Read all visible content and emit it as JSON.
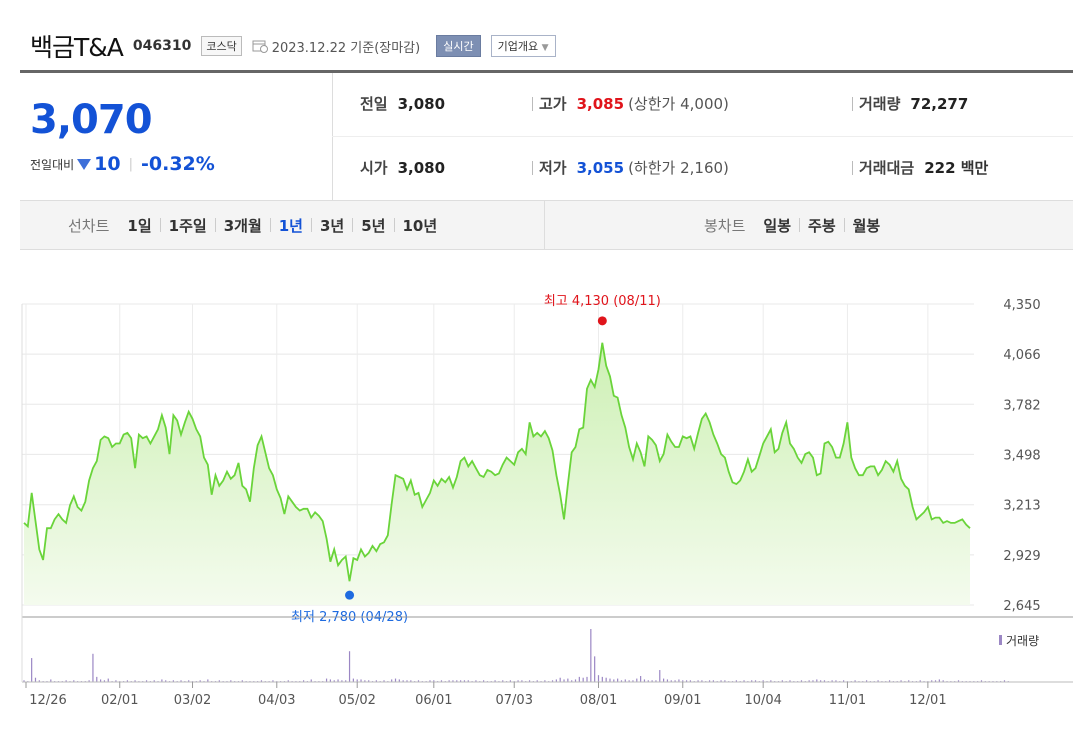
{
  "header": {
    "company_name": "백금T&A",
    "stock_code": "046310",
    "market": "코스닥",
    "date_text": "2023.12.22 기준(장마감)",
    "live_button": "실시간",
    "info_button": "기업개요"
  },
  "quote": {
    "price": "3,070",
    "change_label": "전일대비",
    "change_value": "10",
    "change_pct": "-0.32%",
    "prev_close_label": "전일",
    "prev_close": "3,080",
    "high_label": "고가",
    "high": "3,085",
    "upper_limit": "(상한가 4,000)",
    "volume_label": "거래량",
    "volume": "72,277",
    "open_label": "시가",
    "open": "3,080",
    "low_label": "저가",
    "low": "3,055",
    "lower_limit": "(하한가 2,160)",
    "amount_label": "거래대금",
    "amount": "222",
    "amount_unit": "백만"
  },
  "tabs": {
    "line_label": "선차트",
    "line_periods": [
      "1일",
      "1주일",
      "3개월",
      "1년",
      "3년",
      "5년",
      "10년"
    ],
    "active_period": "1년",
    "candle_label": "봉차트",
    "candle_periods": [
      "일봉",
      "주봉",
      "월봉"
    ]
  },
  "chart_data": {
    "type": "area",
    "y_ticks": [
      "4,350",
      "4,066",
      "3,782",
      "3,498",
      "3,213",
      "2,929",
      "2,645"
    ],
    "ylim": [
      2645,
      4350
    ],
    "x_ticks": [
      "12/26",
      "02/01",
      "03/02",
      "04/03",
      "05/02",
      "06/01",
      "07/03",
      "08/01",
      "09/01",
      "10/04",
      "11/01",
      "12/01"
    ],
    "high_annotation": "최고 4,130 (08/11)",
    "low_annotation": "최저 2,780 (04/28)",
    "volume_legend": "거래량",
    "line_color": "#6ad43a",
    "fill_color": "#cdf0b4",
    "volume_color": "#9b87c4",
    "series": [
      {
        "values": [
          3110,
          3090,
          3280,
          3120,
          2960,
          2900,
          3080,
          3080,
          3130,
          3160,
          3130,
          3110,
          3210,
          3260,
          3200,
          3180,
          3230,
          3350,
          3420,
          3460,
          3580,
          3600,
          3590,
          3540,
          3560,
          3560,
          3610,
          3620,
          3590,
          3420,
          3610,
          3590,
          3600,
          3560,
          3600,
          3640,
          3720,
          3650,
          3500,
          3720,
          3690,
          3610,
          3680,
          3740,
          3700,
          3640,
          3600,
          3480,
          3440,
          3270,
          3380,
          3320,
          3350,
          3400,
          3360,
          3380,
          3450,
          3320,
          3300,
          3230,
          3420,
          3550,
          3600,
          3510,
          3420,
          3380,
          3300,
          3250,
          3160,
          3260,
          3230,
          3200,
          3180,
          3190,
          3190,
          3140,
          3170,
          3150,
          3120,
          3020,
          2890,
          2960,
          2870,
          2900,
          2920,
          2780,
          2910,
          2900,
          2960,
          2920,
          2940,
          2980,
          2950,
          2990,
          3000,
          3040,
          3220,
          3380,
          3370,
          3360,
          3300,
          3350,
          3270,
          3280,
          3200,
          3240,
          3280,
          3350,
          3320,
          3360,
          3340,
          3370,
          3310,
          3370,
          3460,
          3480,
          3430,
          3460,
          3420,
          3380,
          3370,
          3410,
          3400,
          3380,
          3390,
          3440,
          3480,
          3460,
          3440,
          3510,
          3530,
          3500,
          3680,
          3600,
          3620,
          3600,
          3630,
          3590,
          3520,
          3380,
          3270,
          3130,
          3330,
          3510,
          3540,
          3640,
          3650,
          3870,
          3920,
          3880,
          3980,
          4130,
          4000,
          3940,
          3830,
          3820,
          3720,
          3650,
          3540,
          3470,
          3560,
          3510,
          3430,
          3600,
          3580,
          3550,
          3460,
          3500,
          3610,
          3570,
          3540,
          3540,
          3600,
          3590,
          3600,
          3530,
          3620,
          3700,
          3730,
          3680,
          3610,
          3560,
          3500,
          3480,
          3400,
          3340,
          3330,
          3350,
          3400,
          3470,
          3400,
          3420,
          3490,
          3560,
          3600,
          3640,
          3510,
          3530,
          3620,
          3680,
          3560,
          3530,
          3480,
          3450,
          3500,
          3510,
          3480,
          3380,
          3390,
          3560,
          3570,
          3540,
          3480,
          3480,
          3560,
          3680,
          3480,
          3420,
          3380,
          3380,
          3420,
          3430,
          3430,
          3380,
          3410,
          3460,
          3440,
          3400,
          3460,
          3360,
          3320,
          3300,
          3200,
          3130,
          3150,
          3170,
          3200,
          3130,
          3140,
          3140,
          3110,
          3120,
          3110,
          3110,
          3120,
          3130,
          3100,
          3080
        ]
      }
    ],
    "volume_series": [
      2,
      1,
      28,
      5,
      2,
      1,
      1,
      3,
      1,
      1,
      1,
      2,
      1,
      2,
      1,
      1,
      1,
      2,
      33,
      6,
      3,
      2,
      4,
      1,
      2,
      1,
      1,
      2,
      1,
      2,
      1,
      1,
      2,
      1,
      2,
      1,
      3,
      2,
      1,
      2,
      1,
      2,
      1,
      2,
      1,
      1,
      2,
      1,
      3,
      1,
      1,
      2,
      1,
      1,
      2,
      1,
      1,
      2,
      1,
      1,
      1,
      1,
      2,
      1,
      1,
      2,
      1,
      1,
      1,
      2,
      1,
      1,
      1,
      2,
      1,
      3,
      1,
      1,
      1,
      4,
      3,
      2,
      3,
      2,
      2,
      36,
      4,
      3,
      3,
      2,
      2,
      1,
      2,
      1,
      2,
      1,
      3,
      4,
      3,
      2,
      2,
      2,
      1,
      2,
      1,
      1,
      2,
      2,
      1,
      2,
      1,
      2,
      2,
      2,
      2,
      2,
      2,
      1,
      2,
      1,
      2,
      1,
      1,
      2,
      1,
      2,
      1,
      2,
      1,
      2,
      2,
      1,
      2,
      1,
      2,
      1,
      2,
      1,
      2,
      3,
      5,
      3,
      4,
      2,
      3,
      6,
      5,
      6,
      62,
      30,
      8,
      6,
      5,
      4,
      3,
      4,
      2,
      3,
      2,
      2,
      4,
      7,
      3,
      2,
      2,
      2,
      14,
      4,
      3,
      2,
      2,
      3,
      2,
      2,
      2,
      1,
      2,
      2,
      1,
      2,
      2,
      1,
      2,
      2,
      1,
      1,
      2,
      1,
      2,
      1,
      2,
      2,
      1,
      2,
      1,
      2,
      1,
      1,
      2,
      1,
      2,
      1,
      1,
      2,
      1,
      2,
      2,
      3,
      2,
      2,
      1,
      2,
      2,
      1,
      2,
      1,
      1,
      2,
      1,
      1,
      2,
      1,
      1,
      2,
      1,
      1,
      2,
      1,
      1,
      2,
      1,
      2,
      1,
      1,
      2,
      1,
      1,
      2,
      2,
      3,
      2,
      1,
      1,
      1,
      2,
      1,
      1,
      1,
      1,
      1,
      2,
      1,
      1,
      1,
      1,
      1,
      2,
      1
    ]
  }
}
